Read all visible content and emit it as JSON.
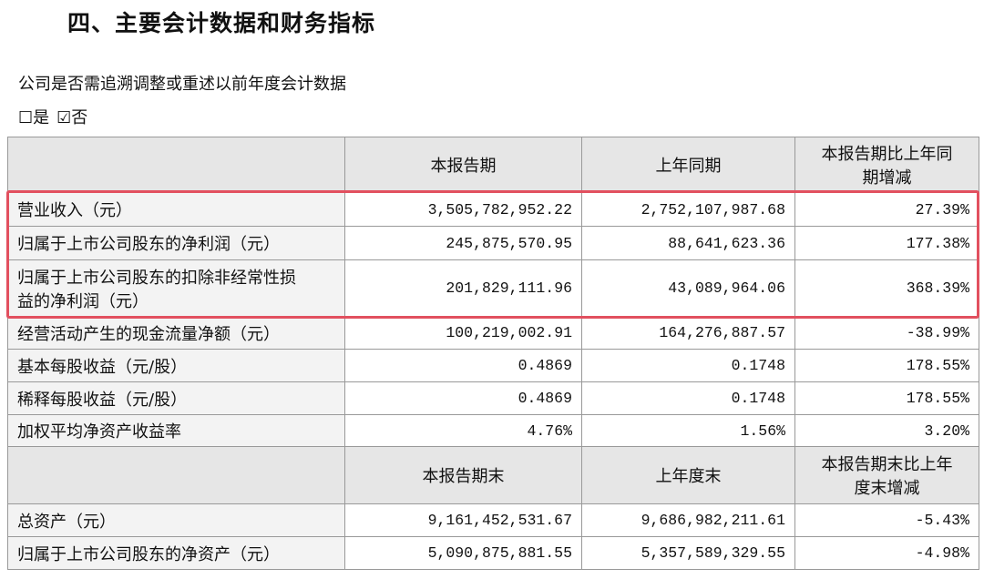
{
  "header": {
    "title": "四、主要会计数据和财务指标"
  },
  "question": "公司是否需追溯调整或重述以前年度会计数据",
  "options": [
    "☐是",
    "☑否"
  ],
  "table": {
    "sections": [
      {
        "header": [
          "本报告期",
          "上年同期",
          "本报告期比上年同期增减"
        ],
        "rows": [
          [
            "营业收入（元）",
            "3,505,782,952.22",
            "2,752,107,987.68",
            "27.39%"
          ],
          [
            "归属于上市公司股东的净利润（元）",
            "245,875,570.95",
            "88,641,623.36",
            "177.38%"
          ],
          [
            "归属于上市公司股东的扣除非经常性损益的净利润（元）",
            "201,829,111.96",
            "43,089,964.06",
            "368.39%"
          ],
          [
            "经营活动产生的现金流量净额（元）",
            "100,219,002.91",
            "164,276,887.57",
            "-38.99%"
          ],
          [
            "基本每股收益（元/股）",
            "0.4869",
            "0.1748",
            "178.55%"
          ],
          [
            "稀释每股收益（元/股）",
            "0.4869",
            "0.1748",
            "178.55%"
          ],
          [
            "加权平均净资产收益率",
            "4.76%",
            "1.56%",
            "3.20%"
          ]
        ]
      },
      {
        "header": [
          "本报告期末",
          "上年度末",
          "本报告期末比上年度末增减"
        ],
        "rows": [
          [
            "总资产（元）",
            "9,161,452,531.67",
            "9,686,982,211.61",
            "-5.43%"
          ],
          [
            "归属于上市公司股东的净资产（元）",
            "5,090,875,881.55",
            "5,357,589,329.55",
            "-4.98%"
          ]
        ]
      }
    ]
  }
}
